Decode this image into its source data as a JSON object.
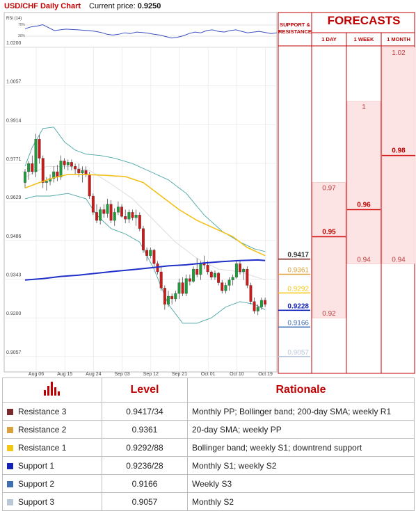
{
  "header": {
    "pair": "USD/CHF Daily Chart",
    "current_price_label": "Current price:",
    "current_price": "0.9250"
  },
  "rsi": {
    "label": "RSI (14)",
    "ticks": [
      "70%",
      "30%"
    ]
  },
  "panel": {
    "sr_title_line1": "SUPPORT &",
    "sr_title_line2": "RESISTANCE",
    "forecast_title": "FORECASTS",
    "forecast_columns": [
      "1 DAY",
      "1 WEEK",
      "1 MONTH"
    ]
  },
  "colors": {
    "brand_red": "#c00000",
    "bull": "#1e9c3a",
    "bear": "#cc1a1a",
    "sma200": "#1f2fc8",
    "sma20": "#f2c018",
    "bollinger": "#4aa5a5",
    "resistance3": "#7a2a2a",
    "resistance2": "#d9a23c",
    "resistance1": "#f4c812",
    "support1": "#1522b8",
    "support2": "#3f6fb0",
    "support3": "#b8c8d8",
    "forecast_fill": "#fde4e4",
    "forecast_line": "#d51616"
  },
  "chart_data": {
    "type": "candlestick",
    "ylim": [
      0.9,
      1.02
    ],
    "y_ticks": [
      "1.0200",
      "1.0057",
      "0.9914",
      "0.9771",
      "0.9629",
      "0.9486",
      "0.9343",
      "0.9200",
      "0.9057"
    ],
    "x_tick_labels": [
      "Aug 06",
      "Aug 15",
      "Aug 24",
      "Sep 03",
      "Sep 12",
      "Sep 21",
      "Oct 01",
      "Oct 10",
      "Oct 19"
    ],
    "candles": [
      [
        0.97,
        0.975,
        0.968,
        0.974
      ],
      [
        0.974,
        0.978,
        0.971,
        0.977
      ],
      [
        0.977,
        0.98,
        0.973,
        0.974
      ],
      [
        0.974,
        0.988,
        0.972,
        0.986
      ],
      [
        0.986,
        0.9875,
        0.977,
        0.979
      ],
      [
        0.979,
        0.98,
        0.968,
        0.97
      ],
      [
        0.97,
        0.972,
        0.967,
        0.9705
      ],
      [
        0.9705,
        0.973,
        0.969,
        0.9715
      ],
      [
        0.9715,
        0.976,
        0.97,
        0.974
      ],
      [
        0.974,
        0.9765,
        0.9705,
        0.972
      ],
      [
        0.972,
        0.98,
        0.971,
        0.978
      ],
      [
        0.978,
        0.979,
        0.975,
        0.9765
      ],
      [
        0.9765,
        0.9785,
        0.9745,
        0.9775
      ],
      [
        0.9775,
        0.9785,
        0.9745,
        0.976
      ],
      [
        0.976,
        0.977,
        0.973,
        0.975
      ],
      [
        0.975,
        0.977,
        0.972,
        0.9735
      ],
      [
        0.9735,
        0.976,
        0.97,
        0.9745
      ],
      [
        0.9745,
        0.976,
        0.972,
        0.973
      ],
      [
        0.973,
        0.974,
        0.964,
        0.965
      ],
      [
        0.965,
        0.966,
        0.958,
        0.959
      ],
      [
        0.959,
        0.962,
        0.955,
        0.956
      ],
      [
        0.956,
        0.961,
        0.9545,
        0.96
      ],
      [
        0.96,
        0.962,
        0.957,
        0.9585
      ],
      [
        0.9585,
        0.964,
        0.957,
        0.962
      ],
      [
        0.962,
        0.9635,
        0.955,
        0.956
      ],
      [
        0.956,
        0.9605,
        0.954,
        0.959
      ],
      [
        0.959,
        0.963,
        0.958,
        0.961
      ],
      [
        0.961,
        0.962,
        0.957,
        0.9575
      ],
      [
        0.9575,
        0.96,
        0.955,
        0.9565
      ],
      [
        0.9565,
        0.96,
        0.955,
        0.959
      ],
      [
        0.959,
        0.96,
        0.956,
        0.957
      ],
      [
        0.957,
        0.96,
        0.954,
        0.958
      ],
      [
        0.958,
        0.959,
        0.952,
        0.953
      ],
      [
        0.953,
        0.954,
        0.944,
        0.945
      ],
      [
        0.945,
        0.946,
        0.941,
        0.943
      ],
      [
        0.943,
        0.946,
        0.942,
        0.945
      ],
      [
        0.945,
        0.9455,
        0.939,
        0.94
      ],
      [
        0.94,
        0.941,
        0.936,
        0.937
      ],
      [
        0.937,
        0.939,
        0.93,
        0.931
      ],
      [
        0.931,
        0.932,
        0.923,
        0.925
      ],
      [
        0.925,
        0.93,
        0.924,
        0.928
      ],
      [
        0.928,
        0.929,
        0.925,
        0.927
      ],
      [
        0.927,
        0.93,
        0.926,
        0.929
      ],
      [
        0.929,
        0.9345,
        0.927,
        0.933
      ],
      [
        0.933,
        0.935,
        0.928,
        0.929
      ],
      [
        0.929,
        0.936,
        0.928,
        0.9345
      ],
      [
        0.9345,
        0.936,
        0.932,
        0.9335
      ],
      [
        0.9335,
        0.939,
        0.933,
        0.938
      ],
      [
        0.938,
        0.942,
        0.935,
        0.936
      ],
      [
        0.936,
        0.941,
        0.934,
        0.94
      ],
      [
        0.94,
        0.943,
        0.938,
        0.9395
      ],
      [
        0.9395,
        0.941,
        0.936,
        0.937
      ],
      [
        0.937,
        0.9375,
        0.934,
        0.935
      ],
      [
        0.935,
        0.9375,
        0.934,
        0.9365
      ],
      [
        0.9365,
        0.937,
        0.932,
        0.933
      ],
      [
        0.933,
        0.934,
        0.929,
        0.93
      ],
      [
        0.93,
        0.933,
        0.929,
        0.932
      ],
      [
        0.932,
        0.935,
        0.93,
        0.934
      ],
      [
        0.934,
        0.936,
        0.932,
        0.935
      ],
      [
        0.935,
        0.941,
        0.9345,
        0.94
      ],
      [
        0.94,
        0.941,
        0.936,
        0.937
      ],
      [
        0.937,
        0.9385,
        0.934,
        0.938
      ],
      [
        0.938,
        0.939,
        0.931,
        0.932
      ],
      [
        0.932,
        0.933,
        0.925,
        0.926
      ],
      [
        0.926,
        0.9275,
        0.9215,
        0.9225
      ],
      [
        0.9225,
        0.925,
        0.921,
        0.924
      ],
      [
        0.924,
        0.9275,
        0.923,
        0.9265
      ],
      [
        0.9265,
        0.9275,
        0.924,
        0.925
      ]
    ],
    "sma20": [
      [
        0,
        0.968
      ],
      [
        4,
        0.97
      ],
      [
        8,
        0.9718
      ],
      [
        12,
        0.973
      ],
      [
        16,
        0.973
      ],
      [
        22,
        0.9727
      ],
      [
        28,
        0.9722
      ],
      [
        33,
        0.97
      ],
      [
        38,
        0.965
      ],
      [
        43,
        0.96
      ],
      [
        48,
        0.956
      ],
      [
        53,
        0.953
      ],
      [
        58,
        0.95
      ],
      [
        62,
        0.946
      ],
      [
        67,
        0.943
      ]
    ],
    "sma200": [
      [
        0,
        0.934
      ],
      [
        5,
        0.9345
      ],
      [
        10,
        0.9353
      ],
      [
        15,
        0.9358
      ],
      [
        20,
        0.9365
      ],
      [
        25,
        0.9372
      ],
      [
        30,
        0.9378
      ],
      [
        35,
        0.9385
      ],
      [
        40,
        0.9392
      ],
      [
        45,
        0.9396
      ],
      [
        50,
        0.9403
      ],
      [
        55,
        0.9408
      ],
      [
        60,
        0.9412
      ],
      [
        65,
        0.9414
      ],
      [
        67,
        0.9412
      ]
    ],
    "bollinger_upper": [
      [
        0,
        0.976
      ],
      [
        2,
        0.983
      ],
      [
        5,
        0.99
      ],
      [
        8,
        0.9905
      ],
      [
        11,
        0.985
      ],
      [
        14,
        0.982
      ],
      [
        17,
        0.9805
      ],
      [
        21,
        0.98
      ],
      [
        25,
        0.979
      ],
      [
        30,
        0.977
      ],
      [
        35,
        0.974
      ],
      [
        40,
        0.971
      ],
      [
        45,
        0.966
      ],
      [
        50,
        0.958
      ],
      [
        55,
        0.952
      ],
      [
        60,
        0.948
      ],
      [
        64,
        0.9455
      ],
      [
        67,
        0.9445
      ]
    ],
    "bollinger_lower": [
      [
        0,
        0.964
      ],
      [
        3,
        0.965
      ],
      [
        7,
        0.965
      ],
      [
        12,
        0.966
      ],
      [
        17,
        0.964
      ],
      [
        20,
        0.958
      ],
      [
        24,
        0.953
      ],
      [
        28,
        0.951
      ],
      [
        32,
        0.948
      ],
      [
        36,
        0.938
      ],
      [
        40,
        0.925
      ],
      [
        44,
        0.918
      ],
      [
        48,
        0.918
      ],
      [
        52,
        0.92
      ],
      [
        56,
        0.924
      ],
      [
        60,
        0.926
      ],
      [
        64,
        0.925
      ],
      [
        67,
        0.923
      ]
    ],
    "bollinger_mid": [
      [
        0,
        0.972
      ],
      [
        6,
        0.976
      ],
      [
        12,
        0.976
      ],
      [
        18,
        0.9745
      ],
      [
        24,
        0.9695
      ],
      [
        30,
        0.964
      ],
      [
        36,
        0.956
      ],
      [
        42,
        0.948
      ],
      [
        48,
        0.942
      ],
      [
        54,
        0.938
      ],
      [
        60,
        0.937
      ],
      [
        67,
        0.934
      ]
    ],
    "rsi_values": [
      55,
      60,
      62,
      66,
      58,
      50,
      52,
      54,
      53,
      52,
      51,
      50,
      48,
      45,
      40,
      38,
      40,
      44,
      42,
      46,
      45,
      43,
      40,
      38,
      34,
      30,
      32,
      36,
      42,
      46,
      44,
      50,
      52,
      48,
      46,
      50,
      52,
      48,
      44,
      46,
      48,
      45,
      42,
      44
    ]
  },
  "levels": [
    {
      "name": "Resistance 3",
      "level": "0.9417/34",
      "tag": "0.9417",
      "value": 0.9417,
      "rationale": "Monthly PP; Bollinger band; 200-day SMA; weekly R1",
      "color": "#7a2a2a"
    },
    {
      "name": "Resistance 2",
      "level": "0.9361",
      "tag": "0.9361",
      "value": 0.9361,
      "rationale": "20-day SMA; weekly PP",
      "color": "#d9a23c"
    },
    {
      "name": "Resistance 1",
      "level": "0.9292/88",
      "tag": "0.9292",
      "value": 0.9292,
      "rationale": "Bollinger band; weekly S1; downtrend support",
      "color": "#f4c812"
    },
    {
      "name": "Support 1",
      "level": "0.9236/28",
      "tag": "0.9228",
      "value": 0.9228,
      "rationale": "Monthly S1; weekly S2",
      "color": "#1522b8"
    },
    {
      "name": "Support 2",
      "level": "0.9166",
      "tag": "0.9166",
      "value": 0.9166,
      "rationale": "Weekly S3",
      "color": "#3f6fb0"
    },
    {
      "name": "Support 3",
      "level": "0.9057",
      "tag": "0.9057",
      "value": 0.9057,
      "rationale": "Monthly S2",
      "color": "#b8c8d8"
    }
  ],
  "forecasts": [
    {
      "horizon": "1 DAY",
      "high": "0.97",
      "high_value": 0.97,
      "mid": "0.95",
      "mid_value": 0.95,
      "low": "0.92",
      "low_value": 0.92
    },
    {
      "horizon": "1 WEEK",
      "high": "1",
      "high_value": 1.0,
      "mid": "0.96",
      "mid_value": 0.96,
      "low": "0.94",
      "low_value": 0.94
    },
    {
      "horizon": "1 MONTH",
      "high": "1.02",
      "high_value": 1.02,
      "mid": "0.98",
      "mid_value": 0.98,
      "low": "0.94",
      "low_value": 0.94
    }
  ],
  "table": {
    "headers": [
      "Level",
      "Rationale"
    ]
  }
}
